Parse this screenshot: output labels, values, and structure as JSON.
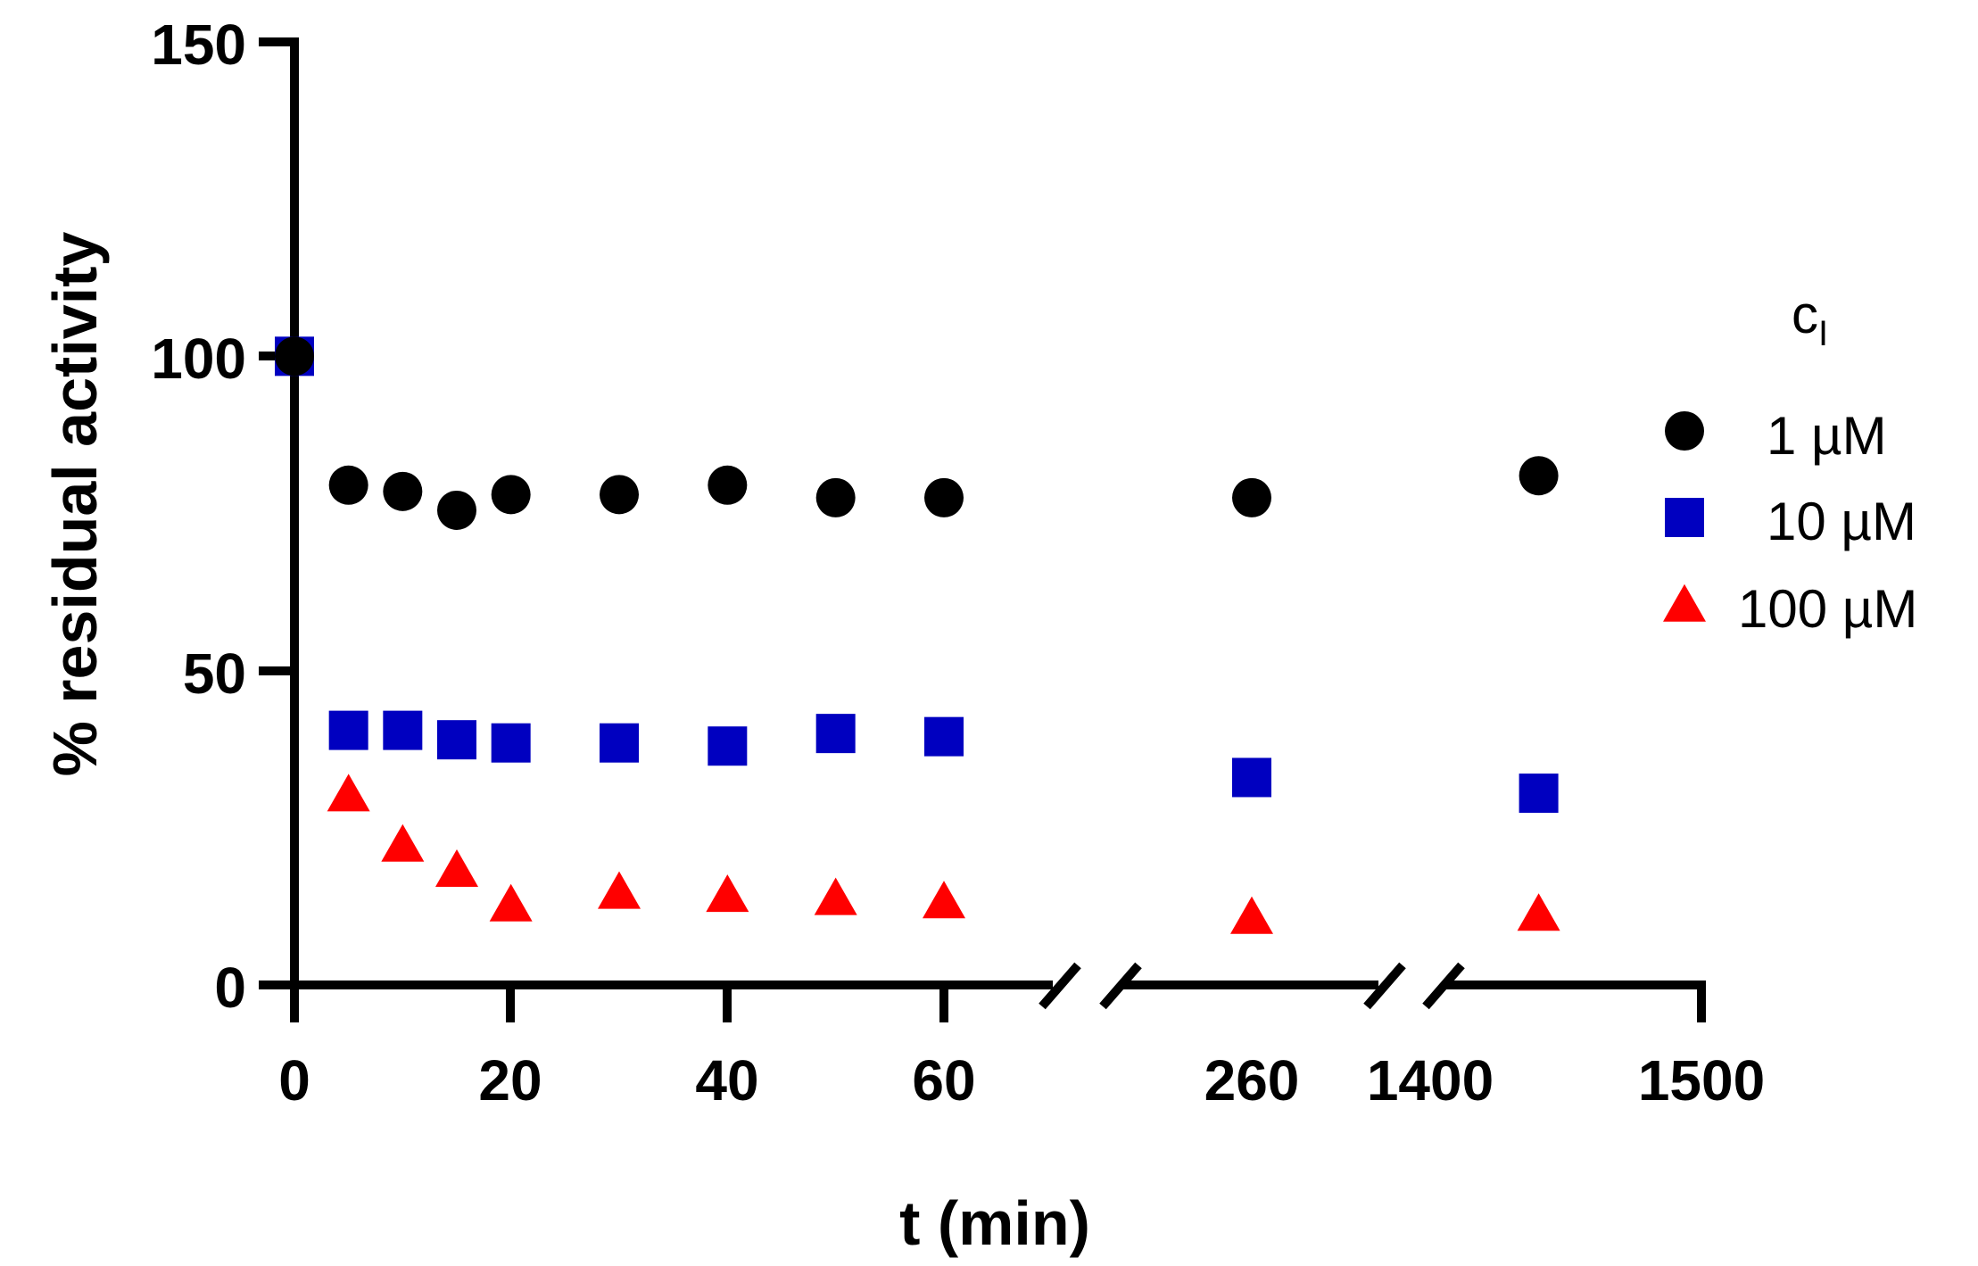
{
  "chart_data": {
    "type": "scatter",
    "xlabel": "t (min)",
    "ylabel": "% residual activity",
    "ylim": [
      0,
      150
    ],
    "y_ticks": [
      "0",
      "50",
      "100",
      "150"
    ],
    "x_axis_broken": true,
    "x_tick_labels": [
      "0",
      "20",
      "40",
      "60",
      "260",
      "1400",
      "1500"
    ],
    "legend": {
      "title_main": "c",
      "title_sub": "I",
      "position": "right"
    },
    "series": [
      {
        "name": "1 µM",
        "marker": "circle",
        "color": "#000000",
        "x": [
          0,
          5,
          10,
          15,
          20,
          30,
          40,
          50,
          60,
          260,
          1440
        ],
        "y": [
          100,
          79.5,
          78.5,
          75.5,
          78,
          78,
          79.5,
          77.5,
          77.5,
          77.5,
          81
        ]
      },
      {
        "name": "10 µM",
        "marker": "square",
        "color": "#0000C0",
        "x": [
          0,
          5,
          10,
          15,
          20,
          30,
          40,
          50,
          60,
          260,
          1440
        ],
        "y": [
          100,
          40.5,
          40.5,
          39,
          38.5,
          38.5,
          38,
          40,
          39.5,
          33,
          30.5
        ]
      },
      {
        "name": "100 µM",
        "marker": "triangle",
        "color": "#FF0000",
        "x": [
          5,
          10,
          15,
          20,
          30,
          40,
          50,
          60,
          260,
          1440
        ],
        "y": [
          30,
          22,
          18,
          12.5,
          14.5,
          14,
          13.5,
          13,
          10.5,
          11
        ]
      }
    ]
  }
}
